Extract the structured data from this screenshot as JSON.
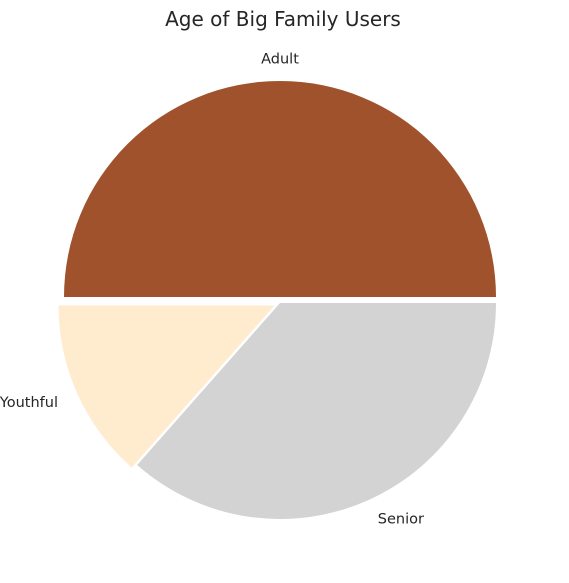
{
  "chart_data": {
    "type": "pie",
    "title": "Age of Big Family Users",
    "slices": [
      {
        "label": "Adult",
        "value": 50.0,
        "color": "#a0522d",
        "explode": true
      },
      {
        "label": "Youthful",
        "value": 13.5,
        "color": "#ffebcd",
        "explode": true
      },
      {
        "label": "Senior",
        "value": 36.5,
        "color": "#d3d3d3",
        "explode": false
      }
    ],
    "start_angle": 0,
    "direction": "counterclockwise"
  }
}
